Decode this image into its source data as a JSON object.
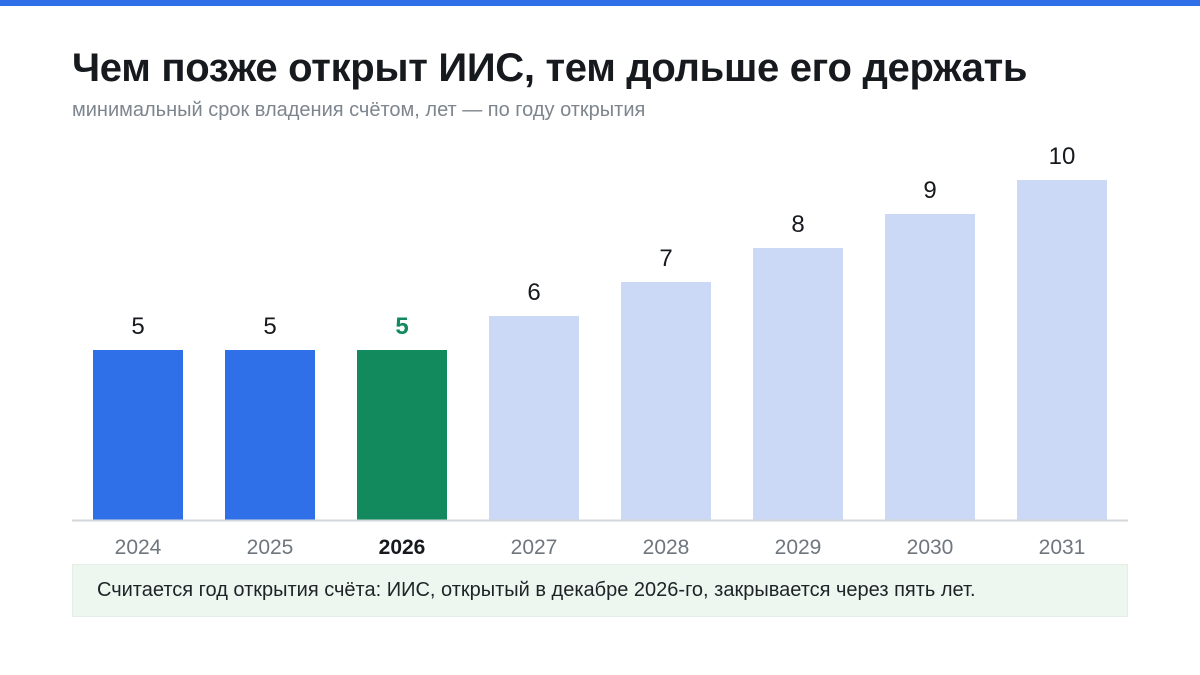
{
  "title": "Чем позже открыт ИИС, тем дольше его держать",
  "subtitle": "минимальный срок владения счётом, лет — по году открытия",
  "footnote": "Считается год открытия счёта: ИИС, открытый в декабре 2026-го, закрывается через пять лет.",
  "colors": {
    "accent_bar": "#2f6fe8",
    "highlight": "#128a5e",
    "future": "#cbd8f6",
    "top_bar": "#2f6fe8",
    "value_label": "#16191d",
    "tick_label": "#6f767e",
    "baseline": "#d4d7db"
  },
  "chart_data": {
    "type": "bar",
    "categories": [
      "2024",
      "2025",
      "2026",
      "2027",
      "2028",
      "2029",
      "2030",
      "2031"
    ],
    "values": [
      5,
      5,
      5,
      6,
      7,
      8,
      9,
      10
    ],
    "highlight_category": "2026",
    "title": "Чем позже открыт ИИС, тем дольше его держать",
    "subtitle": "минимальный срок владения счётом, лет — по году открытия",
    "xlabel": "",
    "ylabel": "",
    "ylim": [
      0,
      10
    ],
    "grid": false,
    "legend": "none"
  }
}
